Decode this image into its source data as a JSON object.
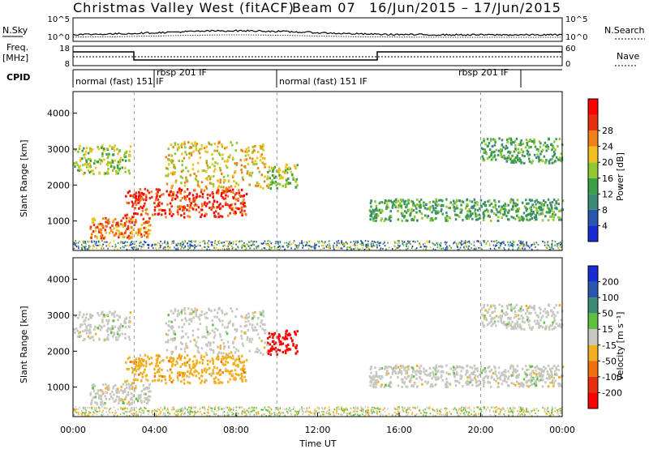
{
  "header": {
    "title": "Christmas Valley West (fitACF)",
    "beam": "Beam 07",
    "date_range": "16/Jun/2015 – 17/Jun/2015"
  },
  "noise_panel": {
    "left_label": "N.Sky",
    "left_ticks": [
      "10^5",
      "10^0"
    ],
    "right_ticks": [
      "10^5",
      "10^0"
    ],
    "right_label": "N.Search"
  },
  "freq_panel": {
    "left_label_1": "Freq.",
    "left_label_2": "[MHz]",
    "left_ticks": [
      "18",
      "8"
    ],
    "right_ticks": [
      "60",
      "0"
    ],
    "right_label": "Nave"
  },
  "cpid_panel": {
    "label": "CPID",
    "segments": [
      {
        "text": "normal (fast) 151 IF",
        "start_hour": 0
      },
      {
        "text": "rbsp 201 IF",
        "start_hour": 3.0
      },
      {
        "text": "normal (fast) 151 IF",
        "start_hour": 10.0
      },
      {
        "text": "rbsp 201 IF",
        "start_hour": 20.0
      }
    ]
  },
  "time_axis": {
    "label": "Time UT",
    "ticks": [
      "00:00",
      "04:00",
      "08:00",
      "12:00",
      "16:00",
      "20:00",
      "00:00"
    ]
  },
  "power_panel": {
    "ylabel": "Slant Range [km]",
    "yticks": [
      "1000",
      "2000",
      "3000",
      "4000"
    ],
    "colorbar_label": "Power [dB]",
    "colorbar_ticks": [
      "4",
      "8",
      "12",
      "16",
      "20",
      "24",
      "28"
    ]
  },
  "velocity_panel": {
    "ylabel": "Slant Range [km]",
    "yticks": [
      "1000",
      "2000",
      "3000",
      "4000"
    ],
    "colorbar_label": "Velocity [m s⁻¹]",
    "colorbar_ticks": [
      "200",
      "100",
      "50",
      "15",
      "-15",
      "-50",
      "-100",
      "-200"
    ]
  },
  "chart_data": {
    "type": "heatmap",
    "title": "Christmas Valley West (fitACF)",
    "subtitle": "Beam 07 16/Jun/2015 – 17/Jun/2015",
    "xlabel": "Time UT",
    "ylabel": "Slant Range [km]",
    "xlim_hours": [
      0,
      24
    ],
    "ylim_km": [
      180,
      4600
    ],
    "power_colors": [
      "#1a2bd6",
      "#2a56b0",
      "#3c8a78",
      "#3aa048",
      "#90c830",
      "#f0c020",
      "#f08018",
      "#e83010",
      "#ff0000"
    ],
    "velocity_colors": [
      "#1a2bd6",
      "#2a56b0",
      "#3c8a78",
      "#60c040",
      "#c8c8c0",
      "#f0b020",
      "#f07010",
      "#e83010",
      "#ff0000"
    ],
    "echo_regions": [
      {
        "name": "morning-high",
        "t_start": 0.0,
        "t_end": 2.8,
        "r_min": 2300,
        "r_max": 3100,
        "power_level": 4,
        "velocity_level": 4
      },
      {
        "name": "morning-low",
        "t_start": 0.8,
        "t_end": 3.8,
        "r_min": 500,
        "r_max": 1100,
        "power_level": 6,
        "velocity_level": 4
      },
      {
        "name": "midday-band",
        "t_start": 2.5,
        "t_end": 8.5,
        "r_min": 1100,
        "r_max": 1900,
        "power_level": 7,
        "velocity_level": 5
      },
      {
        "name": "midday-upper",
        "t_start": 4.5,
        "t_end": 9.5,
        "r_min": 1900,
        "r_max": 3200,
        "power_level": 5,
        "velocity_level": 4
      },
      {
        "name": "red-patch",
        "t_start": 9.5,
        "t_end": 11.0,
        "r_min": 1900,
        "r_max": 2600,
        "power_level": 4,
        "velocity_level": 8
      },
      {
        "name": "afternoon-band",
        "t_start": 14.5,
        "t_end": 24.0,
        "r_min": 1000,
        "r_max": 1600,
        "power_level": 3,
        "velocity_level": 4
      },
      {
        "name": "evening-high",
        "t_start": 20.0,
        "t_end": 24.0,
        "r_min": 2600,
        "r_max": 3300,
        "power_level": 3,
        "velocity_level": 4
      }
    ]
  }
}
